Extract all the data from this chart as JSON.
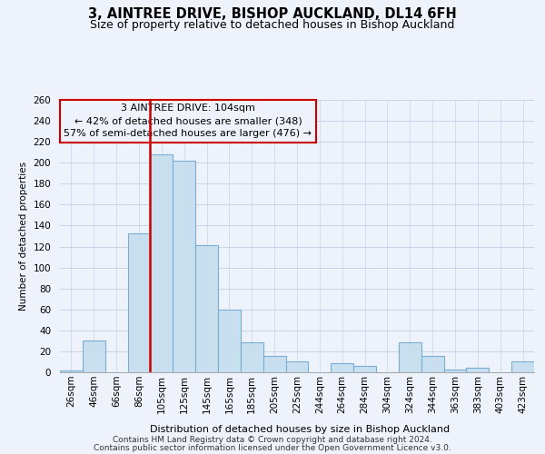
{
  "title": "3, AINTREE DRIVE, BISHOP AUCKLAND, DL14 6FH",
  "subtitle": "Size of property relative to detached houses in Bishop Auckland",
  "xlabel": "Distribution of detached houses by size in Bishop Auckland",
  "ylabel": "Number of detached properties",
  "footnote1": "Contains HM Land Registry data © Crown copyright and database right 2024.",
  "footnote2": "Contains public sector information licensed under the Open Government Licence v3.0.",
  "annotation_title": "3 AINTREE DRIVE: 104sqm",
  "annotation_line1": "← 42% of detached houses are smaller (348)",
  "annotation_line2": "57% of semi-detached houses are larger (476) →",
  "bar_labels": [
    "26sqm",
    "46sqm",
    "66sqm",
    "86sqm",
    "105sqm",
    "125sqm",
    "145sqm",
    "165sqm",
    "185sqm",
    "205sqm",
    "225sqm",
    "244sqm",
    "264sqm",
    "284sqm",
    "304sqm",
    "324sqm",
    "344sqm",
    "363sqm",
    "383sqm",
    "403sqm",
    "423sqm"
  ],
  "bar_values": [
    2,
    30,
    0,
    133,
    208,
    202,
    121,
    60,
    29,
    16,
    10,
    0,
    9,
    6,
    0,
    29,
    16,
    3,
    4,
    0,
    10
  ],
  "bar_color": "#c8dff0",
  "bar_edge_color": "#7aadd4",
  "vline_x": 4.0,
  "vline_color": "#cc0000",
  "ylim": [
    0,
    260
  ],
  "yticks": [
    0,
    20,
    40,
    60,
    80,
    100,
    120,
    140,
    160,
    180,
    200,
    220,
    240,
    260
  ],
  "bg_color": "#eef2fa",
  "grid_color": "#c8d4e8",
  "box_color": "#cc0000",
  "title_fontsize": 10.5,
  "subtitle_fontsize": 9,
  "label_fontsize": 7.5,
  "tick_fontsize": 7.5,
  "annotation_fontsize": 8,
  "footnote_fontsize": 6.5
}
